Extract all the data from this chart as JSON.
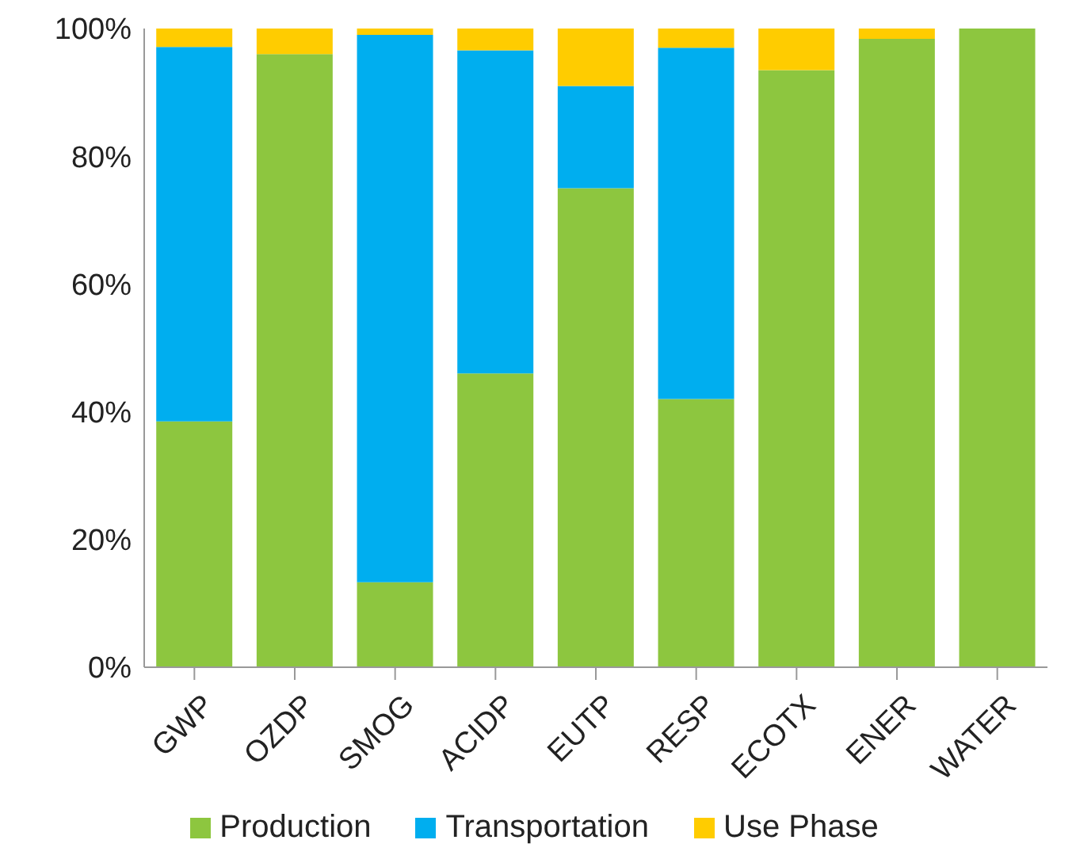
{
  "chart_data": {
    "type": "bar",
    "stacked": true,
    "categories": [
      "GWP",
      "OZDP",
      "SMOG",
      "ACIDP",
      "EUTP",
      "RESP",
      "ECOTX",
      "ENER",
      "WATER"
    ],
    "series": [
      {
        "name": "Production",
        "color": "#8dc63f",
        "values": [
          38.5,
          96,
          13.3,
          46,
          75,
          42,
          93.5,
          98.4,
          100
        ]
      },
      {
        "name": "Transportation",
        "color": "#00aeef",
        "values": [
          58.6,
          0,
          85.7,
          50.6,
          16,
          55,
          0,
          0,
          0
        ]
      },
      {
        "name": "Use Phase",
        "color": "#ffcc00",
        "values": [
          2.9,
          4,
          1,
          3.4,
          9,
          3,
          6.5,
          1.6,
          0
        ]
      }
    ],
    "ylim": [
      0,
      100
    ],
    "yticks": [
      {
        "value": 0,
        "label": "0%"
      },
      {
        "value": 20,
        "label": "20%"
      },
      {
        "value": 40,
        "label": "40%"
      },
      {
        "value": 60,
        "label": "60%"
      },
      {
        "value": 80,
        "label": "80%"
      },
      {
        "value": 100,
        "label": "100%"
      }
    ],
    "grid": false,
    "legend": "bottom"
  }
}
